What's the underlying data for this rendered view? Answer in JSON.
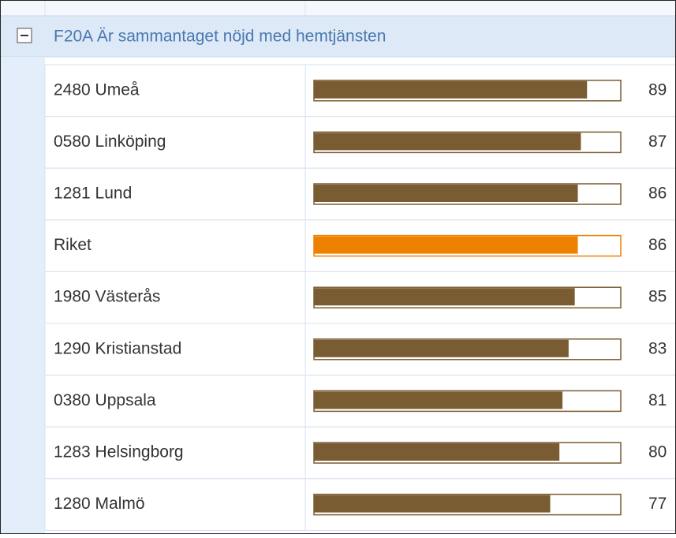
{
  "chart_data": {
    "type": "bar",
    "title": "F20A Är sammantaget nöjd med hemtjänsten",
    "categories": [
      "2480 Umeå",
      "0580 Linköping",
      "1281 Lund",
      "Riket",
      "1980 Västerås",
      "1290 Kristianstad",
      "0380 Uppsala",
      "1283 Helsingborg",
      "1280 Malmö"
    ],
    "values": [
      89,
      87,
      86,
      86,
      85,
      83,
      81,
      80,
      77
    ],
    "colors": [
      "#7a5c32",
      "#7a5c32",
      "#7a5c32",
      "#ee8200",
      "#7a5c32",
      "#7a5c32",
      "#7a5c32",
      "#7a5c32",
      "#7a5c32"
    ],
    "xlim": [
      0,
      100
    ]
  }
}
